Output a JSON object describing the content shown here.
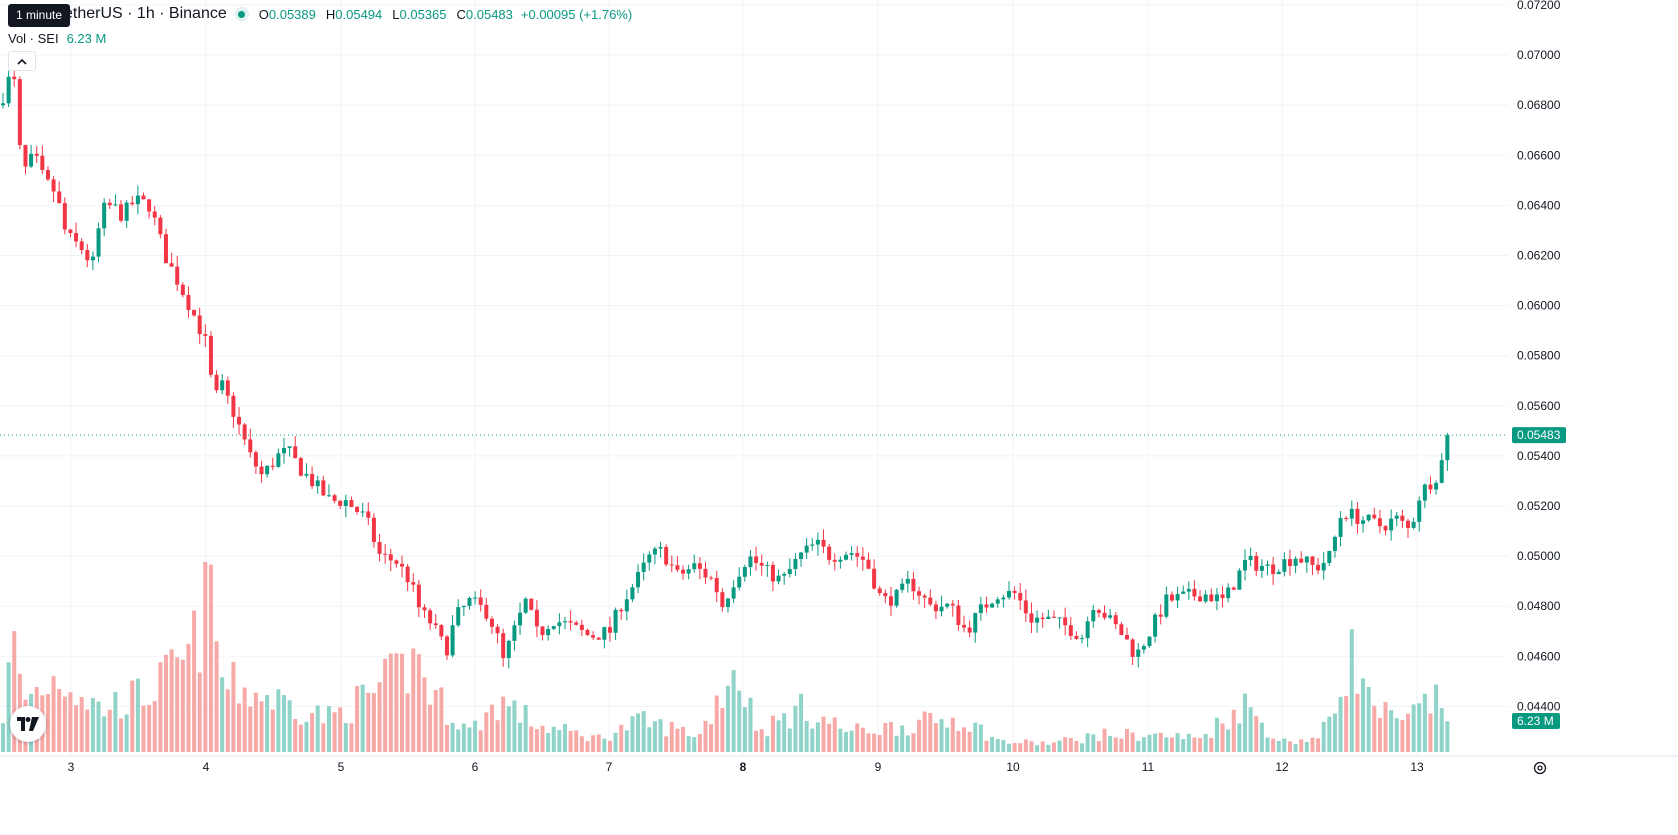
{
  "header": {
    "symbol_line": "etherUS · 1h · Binance",
    "tooltip": "1 minute",
    "ohlc": [
      {
        "key": "O",
        "value": "0.05389"
      },
      {
        "key": "H",
        "value": "0.05494"
      },
      {
        "key": "L",
        "value": "0.05365"
      },
      {
        "key": "C",
        "value": "0.05483"
      }
    ],
    "change": "+0.00095 (+1.76%)",
    "volume_label": "Vol · SEI",
    "volume_value": "6.23 M"
  },
  "price_axis": {
    "labels": [
      "0.07200",
      "0.07000",
      "0.06800",
      "0.06600",
      "0.06400",
      "0.06200",
      "0.06000",
      "0.05800",
      "0.05600",
      "0.05400",
      "0.05200",
      "0.05000",
      "0.04800",
      "0.04600",
      "0.04400"
    ],
    "last_price": "0.05483",
    "volume_tag": "6.23 M"
  },
  "time_axis": {
    "labels": [
      "3",
      "4",
      "5",
      "6",
      "7",
      "8",
      "9",
      "10",
      "11",
      "12",
      "13"
    ],
    "bold_label": "8"
  },
  "colors": {
    "up": "#089981",
    "down": "#f23645",
    "up_volume": "#8fd3c9",
    "down_volume": "#f7a9a7",
    "grid": "#f0f3fa"
  },
  "icons": {
    "collapse": "chevron-up-icon",
    "logo": "tradingview-logo",
    "settings": "gear-icon"
  },
  "chart_data": {
    "type": "candlestick",
    "interval": "1h",
    "ylim": [
      0.0432,
      0.072
    ],
    "last_close": 0.05483,
    "price_path": [
      [
        0,
        0.068
      ],
      [
        8,
        0.069
      ],
      [
        14,
        0.069
      ],
      [
        22,
        0.0652
      ],
      [
        34,
        0.066
      ],
      [
        44,
        0.065
      ],
      [
        56,
        0.0645
      ],
      [
        66,
        0.0628
      ],
      [
        84,
        0.0622
      ],
      [
        92,
        0.0615
      ],
      [
        102,
        0.0638
      ],
      [
        112,
        0.064
      ],
      [
        122,
        0.0636
      ],
      [
        135,
        0.0642
      ],
      [
        150,
        0.064
      ],
      [
        165,
        0.062
      ],
      [
        180,
        0.0608
      ],
      [
        192,
        0.0598
      ],
      [
        206,
        0.0585
      ],
      [
        214,
        0.0562
      ],
      [
        222,
        0.0568
      ],
      [
        236,
        0.0555
      ],
      [
        250,
        0.054
      ],
      [
        262,
        0.0532
      ],
      [
        278,
        0.054
      ],
      [
        288,
        0.0542
      ],
      [
        300,
        0.0535
      ],
      [
        316,
        0.0528
      ],
      [
        330,
        0.0522
      ],
      [
        346,
        0.0522
      ],
      [
        366,
        0.0515
      ],
      [
        380,
        0.05
      ],
      [
        396,
        0.0498
      ],
      [
        410,
        0.049
      ],
      [
        420,
        0.0478
      ],
      [
        432,
        0.0473
      ],
      [
        446,
        0.0462
      ],
      [
        456,
        0.0476
      ],
      [
        470,
        0.0482
      ],
      [
        486,
        0.0478
      ],
      [
        496,
        0.047
      ],
      [
        503,
        0.0458
      ],
      [
        514,
        0.047
      ],
      [
        526,
        0.0482
      ],
      [
        538,
        0.0468
      ],
      [
        552,
        0.0475
      ],
      [
        570,
        0.0472
      ],
      [
        590,
        0.0468
      ],
      [
        610,
        0.047
      ],
      [
        620,
        0.048
      ],
      [
        636,
        0.049
      ],
      [
        650,
        0.05
      ],
      [
        662,
        0.0502
      ],
      [
        678,
        0.0492
      ],
      [
        694,
        0.0496
      ],
      [
        714,
        0.049
      ],
      [
        722,
        0.048
      ],
      [
        736,
        0.0492
      ],
      [
        748,
        0.05
      ],
      [
        766,
        0.0494
      ],
      [
        782,
        0.049
      ],
      [
        800,
        0.05
      ],
      [
        816,
        0.0505
      ],
      [
        830,
        0.05
      ],
      [
        850,
        0.0502
      ],
      [
        866,
        0.0498
      ],
      [
        882,
        0.0482
      ],
      [
        898,
        0.0484
      ],
      [
        910,
        0.049
      ],
      [
        930,
        0.048
      ],
      [
        950,
        0.048
      ],
      [
        966,
        0.047
      ],
      [
        980,
        0.0478
      ],
      [
        996,
        0.0485
      ],
      [
        1016,
        0.0485
      ],
      [
        1030,
        0.0475
      ],
      [
        1046,
        0.0475
      ],
      [
        1066,
        0.0472
      ],
      [
        1082,
        0.0468
      ],
      [
        1094,
        0.0482
      ],
      [
        1108,
        0.0475
      ],
      [
        1124,
        0.0468
      ],
      [
        1136,
        0.046
      ],
      [
        1150,
        0.047
      ],
      [
        1166,
        0.0482
      ],
      [
        1186,
        0.0484
      ],
      [
        1204,
        0.0485
      ],
      [
        1224,
        0.0482
      ],
      [
        1246,
        0.0498
      ],
      [
        1270,
        0.0495
      ],
      [
        1296,
        0.05
      ],
      [
        1316,
        0.0495
      ],
      [
        1330,
        0.05
      ],
      [
        1342,
        0.0518
      ],
      [
        1360,
        0.0515
      ],
      [
        1382,
        0.0512
      ],
      [
        1396,
        0.0515
      ],
      [
        1410,
        0.051
      ],
      [
        1420,
        0.0525
      ],
      [
        1436,
        0.0532
      ],
      [
        1452,
        0.0548
      ]
    ],
    "volume_path": [
      [
        0,
        0.1
      ],
      [
        14,
        0.65
      ],
      [
        22,
        0.3
      ],
      [
        60,
        0.45
      ],
      [
        100,
        0.25
      ],
      [
        150,
        0.35
      ],
      [
        190,
        0.55
      ],
      [
        212,
        0.95
      ],
      [
        222,
        0.4
      ],
      [
        280,
        0.3
      ],
      [
        330,
        0.2
      ],
      [
        375,
        0.35
      ],
      [
        420,
        0.55
      ],
      [
        430,
        0.35
      ],
      [
        470,
        0.12
      ],
      [
        500,
        0.3
      ],
      [
        540,
        0.15
      ],
      [
        600,
        0.08
      ],
      [
        640,
        0.18
      ],
      [
        700,
        0.1
      ],
      [
        734,
        0.5
      ],
      [
        760,
        0.12
      ],
      [
        800,
        0.25
      ],
      [
        850,
        0.12
      ],
      [
        900,
        0.15
      ],
      [
        960,
        0.2
      ],
      [
        1000,
        0.06
      ],
      [
        1050,
        0.05
      ],
      [
        1100,
        0.1
      ],
      [
        1150,
        0.1
      ],
      [
        1200,
        0.08
      ],
      [
        1244,
        0.28
      ],
      [
        1280,
        0.06
      ],
      [
        1320,
        0.08
      ],
      [
        1340,
        0.35
      ],
      [
        1350,
        0.6
      ],
      [
        1368,
        0.3
      ],
      [
        1400,
        0.15
      ],
      [
        1430,
        0.3
      ],
      [
        1452,
        0.25
      ]
    ]
  }
}
